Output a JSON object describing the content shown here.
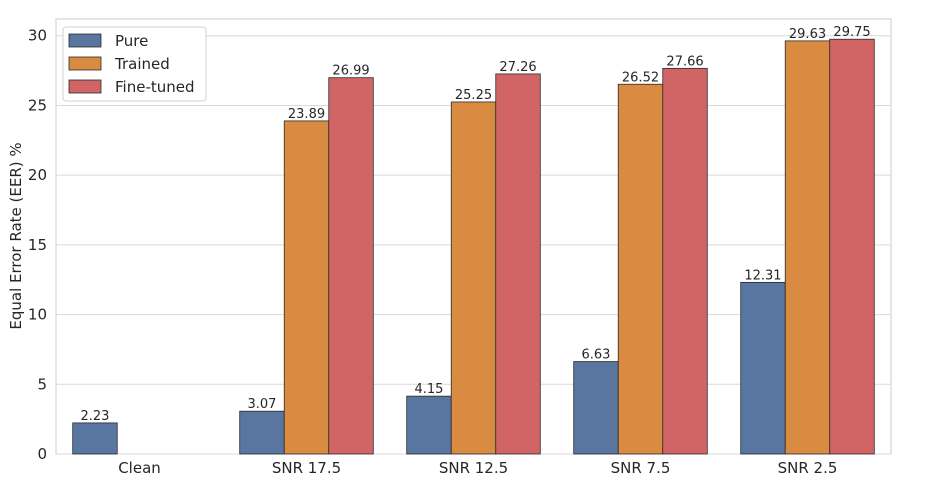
{
  "chart_data": {
    "type": "bar",
    "title": "",
    "xlabel": "",
    "ylabel": "Equal Error Rate (EER) %",
    "categories": [
      "Clean",
      "SNR 17.5",
      "SNR 12.5",
      "SNR 7.5",
      "SNR 2.5"
    ],
    "series": [
      {
        "name": "Pure",
        "color": "#5876a0",
        "values": [
          2.23,
          3.07,
          4.15,
          6.63,
          12.31
        ]
      },
      {
        "name": "Trained",
        "color": "#d98c41",
        "values": [
          null,
          23.89,
          25.25,
          26.52,
          29.63
        ]
      },
      {
        "name": "Fine-tuned",
        "color": "#d16566",
        "values": [
          null,
          26.99,
          27.26,
          27.66,
          29.75
        ]
      }
    ],
    "ylim": [
      0,
      31.2
    ],
    "yticks": [
      0,
      5,
      10,
      15,
      20,
      25,
      30
    ],
    "grid": "horizontal",
    "legend": "top-left"
  }
}
